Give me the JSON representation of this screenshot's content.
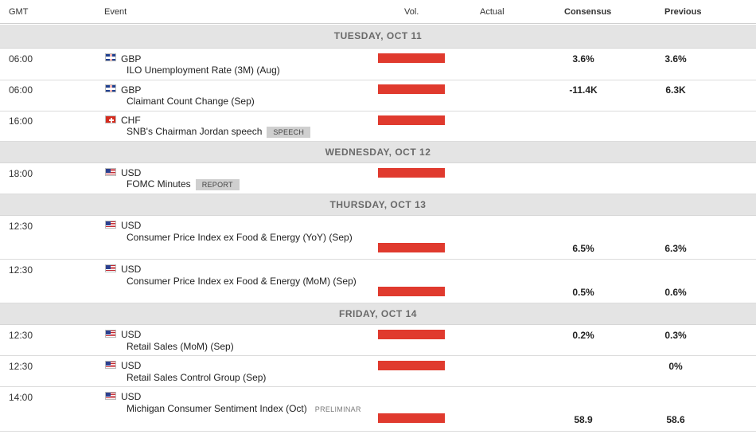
{
  "header": {
    "gmt": "GMT",
    "event": "Event",
    "vol": "Vol.",
    "actual": "Actual",
    "consensus": "Consensus",
    "previous": "Previous"
  },
  "days": [
    {
      "label": "TUESDAY, OCT 11"
    },
    {
      "label": "WEDNESDAY, OCT 12"
    },
    {
      "label": "THURSDAY, OCT 13"
    },
    {
      "label": "FRIDAY, OCT 14"
    }
  ],
  "events": [
    {
      "time": "06:00",
      "flag": "uk-flag-icon",
      "currency": "GBP",
      "name": "ILO Unemployment Rate (3M) (Aug)",
      "tag": "",
      "actual": "",
      "consensus": "3.6%",
      "previous": "3.6%"
    },
    {
      "time": "06:00",
      "flag": "uk-flag-icon",
      "currency": "GBP",
      "name": "Claimant Count Change (Sep)",
      "tag": "",
      "actual": "",
      "consensus": "-11.4K",
      "previous": "6.3K"
    },
    {
      "time": "16:00",
      "flag": "swiss-flag-icon",
      "currency": "CHF",
      "name": "SNB's Chairman Jordan speech",
      "tag": "SPEECH",
      "actual": "",
      "consensus": "",
      "previous": ""
    },
    {
      "time": "18:00",
      "flag": "us-flag-icon",
      "currency": "USD",
      "name": "FOMC Minutes",
      "tag": "REPORT",
      "actual": "",
      "consensus": "",
      "previous": ""
    },
    {
      "time": "12:30",
      "flag": "us-flag-icon",
      "currency": "USD",
      "name": "Consumer Price Index ex Food & Energy (YoY) (Sep)",
      "tag": "",
      "actual": "",
      "consensus": "6.5%",
      "previous": "6.3%"
    },
    {
      "time": "12:30",
      "flag": "us-flag-icon",
      "currency": "USD",
      "name": "Consumer Price Index ex Food & Energy (MoM) (Sep)",
      "tag": "",
      "actual": "",
      "consensus": "0.5%",
      "previous": "0.6%"
    },
    {
      "time": "12:30",
      "flag": "us-flag-icon",
      "currency": "USD",
      "name": "Retail Sales (MoM) (Sep)",
      "tag": "",
      "actual": "",
      "consensus": "0.2%",
      "previous": "0.3%"
    },
    {
      "time": "12:30",
      "flag": "us-flag-icon",
      "currency": "USD",
      "name": "Retail Sales Control Group (Sep)",
      "tag": "",
      "actual": "",
      "consensus": "",
      "previous": "0%"
    },
    {
      "time": "14:00",
      "flag": "us-flag-icon",
      "currency": "USD",
      "name": "Michigan Consumer Sentiment Index (Oct)",
      "tag": "PRELIMINAR",
      "actual": "",
      "consensus": "58.9",
      "previous": "58.6"
    }
  ],
  "colors": {
    "volume_bar": "#e03a2e",
    "day_bg": "#e4e4e4"
  }
}
